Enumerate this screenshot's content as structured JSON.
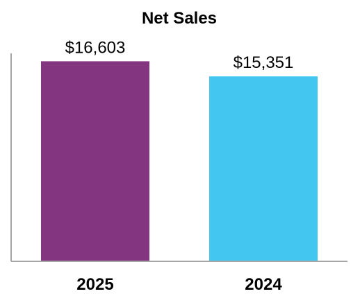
{
  "chart_data": {
    "type": "bar",
    "title": "Net Sales",
    "categories": [
      "2025",
      "2024"
    ],
    "values": [
      16603,
      15351
    ],
    "data_labels": [
      "$16,603",
      "$15,351"
    ],
    "colors": [
      "#84357F",
      "#43C7F0"
    ],
    "xlabel": "",
    "ylabel": "",
    "ylim": [
      0,
      18700
    ],
    "grid": false,
    "legend": "none"
  }
}
